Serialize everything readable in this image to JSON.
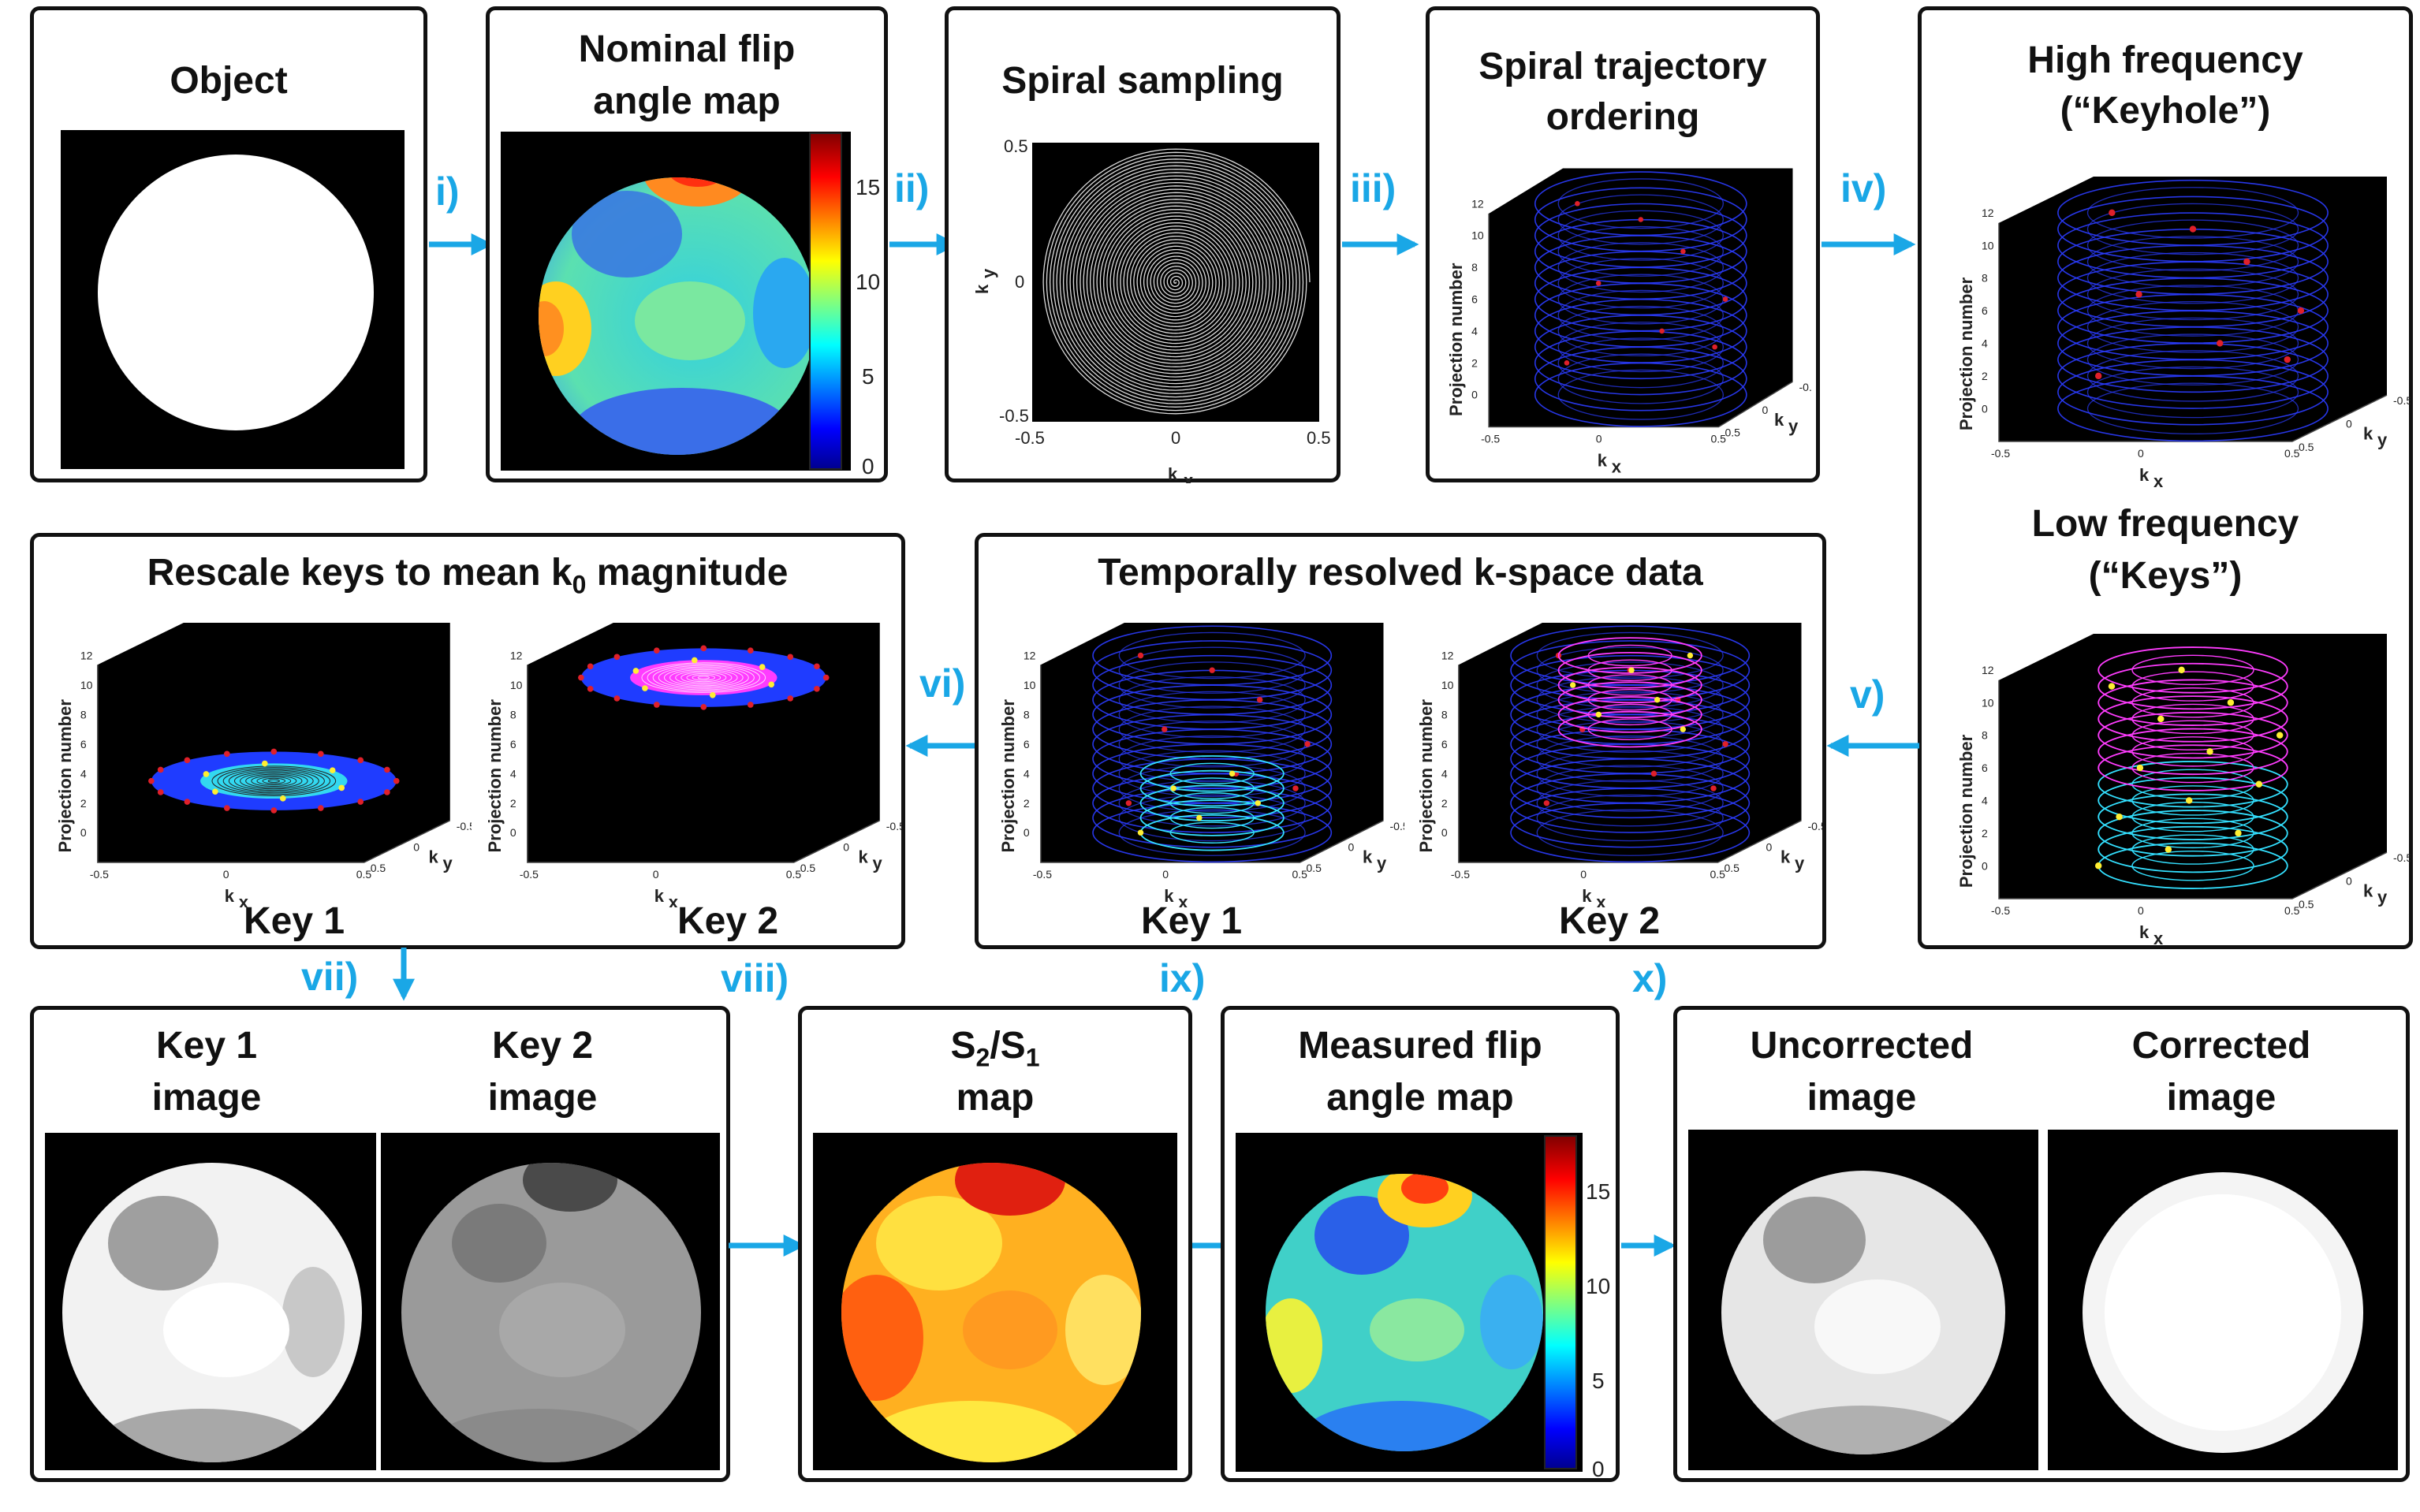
{
  "panels": {
    "object": {
      "title": "Object"
    },
    "nominal": {
      "title_line1": "Nominal flip",
      "title_line2": "angle map",
      "cbar_ticks": [
        "15",
        "10",
        "5",
        "0"
      ]
    },
    "spiral": {
      "title": "Spiral sampling",
      "xlabel": "k",
      "xsub": "x",
      "ylabel": "k",
      "ysub": "y",
      "xticks": [
        "-0.5",
        "0",
        "0.5"
      ],
      "yticks": [
        "0.5",
        "0",
        "-0.5"
      ]
    },
    "ordering": {
      "title_line1": "Spiral trajectory",
      "title_line2": "ordering"
    },
    "highlow": {
      "high_line1": "High frequency",
      "high_line2": "(“Keyhole”)",
      "low_line1": "Low frequency",
      "low_line2": "(“Keys”)"
    },
    "temporal": {
      "title": "Temporally resolved k-space data",
      "key1": "Key 1",
      "key2": "Key 2"
    },
    "rescale": {
      "title_pre": "Rescale keys to mean k",
      "title_sub": "0",
      "title_post": " magnitude",
      "key1": "Key 1",
      "key2": "Key 2"
    },
    "keyimages": {
      "key1_line1": "Key 1",
      "key1_line2": "image",
      "key2_line1": "Key 2",
      "key2_line2": "image"
    },
    "ratio": {
      "title_s2": "S",
      "sub2": "2",
      "slash": "/S",
      "sub1": "1",
      "title_line2": "map"
    },
    "measured": {
      "title_line1": "Measured flip",
      "title_line2": "angle map",
      "cbar_ticks": [
        "15",
        "10",
        "5",
        "0"
      ]
    },
    "final": {
      "uncorr_line1": "Uncorrected",
      "uncorr_line2": "image",
      "corr_line1": "Corrected",
      "corr_line2": "image"
    }
  },
  "plot3d": {
    "ylabel": "Projection number",
    "zticks": [
      "0",
      "2",
      "4",
      "6",
      "8",
      "10",
      "12"
    ],
    "kx": "k",
    "kx_sub": "x",
    "ky": "k",
    "ky_sub": "y",
    "xticks": [
      "-0.5",
      "0",
      "0.5"
    ],
    "yticks": [
      "0.5",
      "0",
      "-0.5"
    ]
  },
  "steps": {
    "i": "i)",
    "ii": "ii)",
    "iii": "iii)",
    "iv": "iv)",
    "v": "v)",
    "vi": "vi)",
    "vii": "vii)",
    "viii": "viii)",
    "ix": "ix)",
    "x": "x)"
  },
  "colors": {
    "accent": "#1aa7e6",
    "spiral_blue": "#2b3cff",
    "keys_magenta": "#ff3cff",
    "keys_cyan": "#33e0ff",
    "marker_red": "#e0202a",
    "marker_yellow": "#ffee33"
  }
}
